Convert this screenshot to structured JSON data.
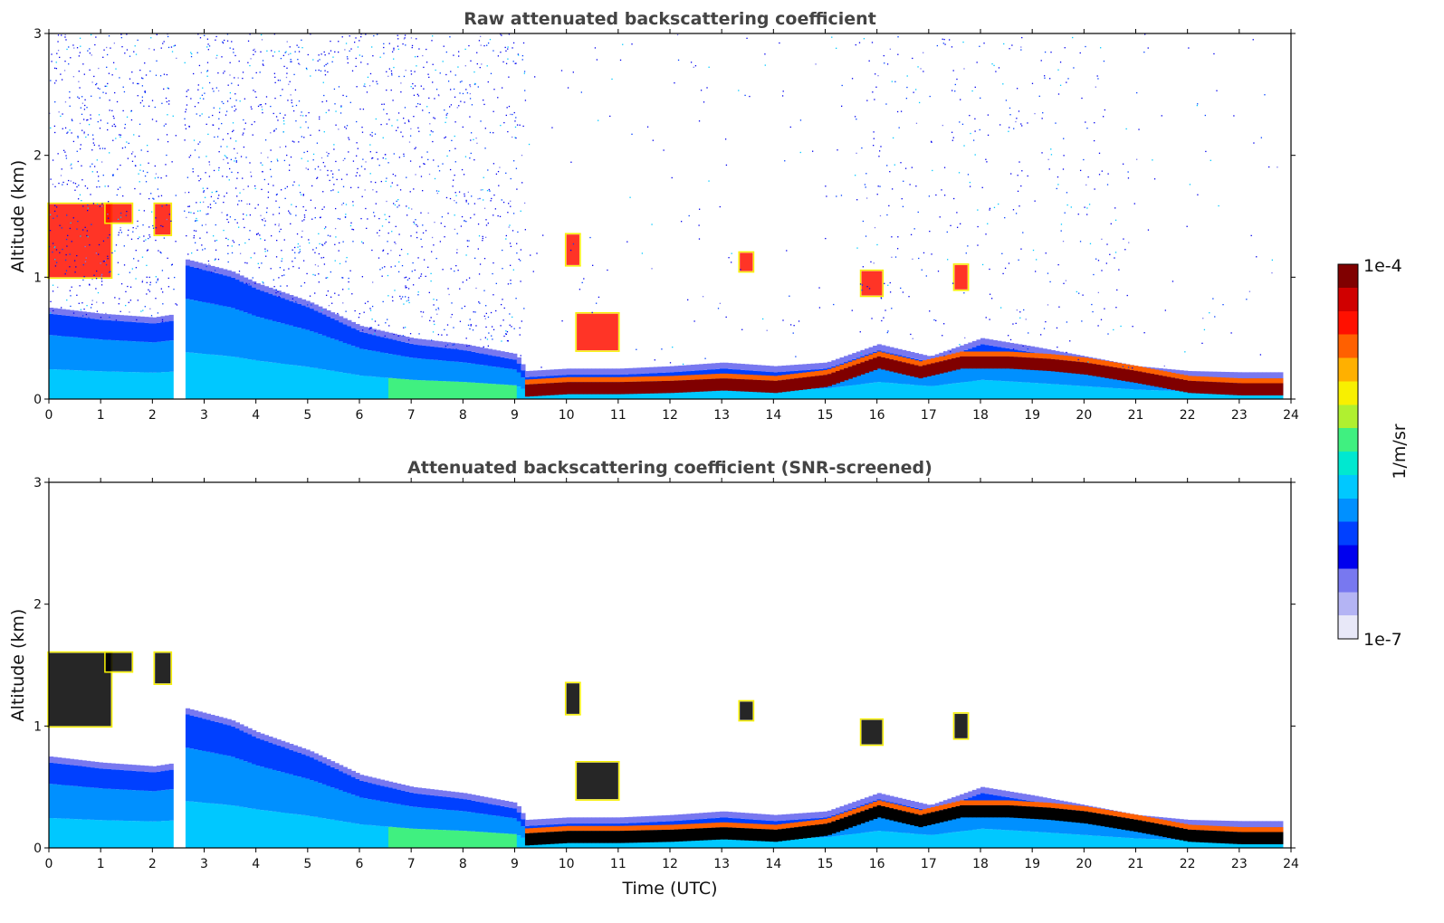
{
  "chart_data": [
    {
      "type": "heatmap",
      "title": "Raw attenuated backscattering coefficient",
      "xlabel": "",
      "ylabel": "Altitude (km)",
      "xlim": [
        0,
        24
      ],
      "ylim": [
        0,
        3
      ],
      "xticks": [
        "0",
        "1",
        "2",
        "3",
        "4",
        "5",
        "6",
        "7",
        "8",
        "9",
        "10",
        "11",
        "12",
        "13",
        "14",
        "15",
        "16",
        "17",
        "18",
        "19",
        "20",
        "21",
        "22",
        "23",
        "24"
      ],
      "yticks": [
        "0",
        "1",
        "2",
        "3"
      ],
      "missing_data_gap_utc": [
        2.47,
        2.6
      ],
      "boundary_layer_top_km": [
        [
          0,
          0.7
        ],
        [
          1,
          0.65
        ],
        [
          2,
          0.62
        ],
        [
          2.45,
          0.65
        ],
        [
          2.6,
          1.1
        ],
        [
          3.5,
          1.0
        ],
        [
          4,
          0.9
        ],
        [
          5,
          0.75
        ],
        [
          6,
          0.55
        ],
        [
          7,
          0.45
        ],
        [
          8,
          0.4
        ],
        [
          9,
          0.32
        ],
        [
          9.2,
          0.18
        ],
        [
          10,
          0.2
        ],
        [
          11,
          0.2
        ],
        [
          12,
          0.22
        ],
        [
          13,
          0.25
        ],
        [
          14,
          0.22
        ],
        [
          15,
          0.25
        ],
        [
          16,
          0.4
        ],
        [
          17,
          0.3
        ],
        [
          18,
          0.45
        ],
        [
          19,
          0.38
        ],
        [
          20,
          0.3
        ],
        [
          21,
          0.22
        ],
        [
          22,
          0.18
        ],
        [
          23,
          0.17
        ],
        [
          23.8,
          0.17
        ]
      ],
      "strong_layer_km": [
        [
          9.2,
          0.07
        ],
        [
          10,
          0.09
        ],
        [
          11,
          0.09
        ],
        [
          12,
          0.1
        ],
        [
          13,
          0.12
        ],
        [
          14,
          0.1
        ],
        [
          15,
          0.15
        ],
        [
          16,
          0.3
        ],
        [
          16.8,
          0.22
        ],
        [
          17.6,
          0.3
        ],
        [
          18.5,
          0.3
        ],
        [
          19.3,
          0.28
        ],
        [
          20,
          0.25
        ],
        [
          21,
          0.18
        ],
        [
          22,
          0.1
        ],
        [
          23,
          0.08
        ],
        [
          23.8,
          0.08
        ]
      ],
      "cloud_patches": [
        {
          "t": [
            0,
            1.2
          ],
          "alt": [
            1.0,
            1.6
          ]
        },
        {
          "t": [
            1.1,
            1.6
          ],
          "alt": [
            1.45,
            1.6
          ]
        },
        {
          "t": [
            2.05,
            2.35
          ],
          "alt": [
            1.35,
            1.6
          ]
        },
        {
          "t": [
            10.0,
            10.25
          ],
          "alt": [
            1.1,
            1.35
          ]
        },
        {
          "t": [
            10.2,
            11.0
          ],
          "alt": [
            0.4,
            0.7
          ]
        },
        {
          "t": [
            13.35,
            13.6
          ],
          "alt": [
            1.05,
            1.2
          ]
        },
        {
          "t": [
            15.7,
            16.1
          ],
          "alt": [
            0.85,
            1.05
          ]
        },
        {
          "t": [
            17.5,
            17.75
          ],
          "alt": [
            0.9,
            1.1
          ]
        }
      ]
    },
    {
      "type": "heatmap",
      "title": "Attenuated backscattering coefficient (SNR-screened)",
      "xlabel": "Time (UTC)",
      "ylabel": "Altitude (km)",
      "xlim": [
        0,
        24
      ],
      "ylim": [
        0,
        3
      ],
      "xticks": [
        "0",
        "1",
        "2",
        "3",
        "4",
        "5",
        "6",
        "7",
        "8",
        "9",
        "10",
        "11",
        "12",
        "13",
        "14",
        "15",
        "16",
        "17",
        "18",
        "19",
        "20",
        "21",
        "22",
        "23",
        "24"
      ],
      "yticks": [
        "0",
        "1",
        "2",
        "3"
      ],
      "missing_data_gap_utc": [
        2.47,
        2.6
      ],
      "saturated_color": "#000000"
    }
  ],
  "colorbar": {
    "label": "1/m/sr",
    "max_label": "1e-4",
    "min_label": "1e-7",
    "colors": [
      "#e8e8f8",
      "#b4b4f4",
      "#7878f0",
      "#0000ee",
      "#0040ff",
      "#0090ff",
      "#00c8ff",
      "#00e8d0",
      "#40f080",
      "#b0f030",
      "#f8f000",
      "#ffb000",
      "#ff6000",
      "#ff1000",
      "#d00000",
      "#800000"
    ]
  },
  "colors": {
    "background": "#ffffff",
    "title_text": "#444444",
    "axis_text": "#111111"
  }
}
